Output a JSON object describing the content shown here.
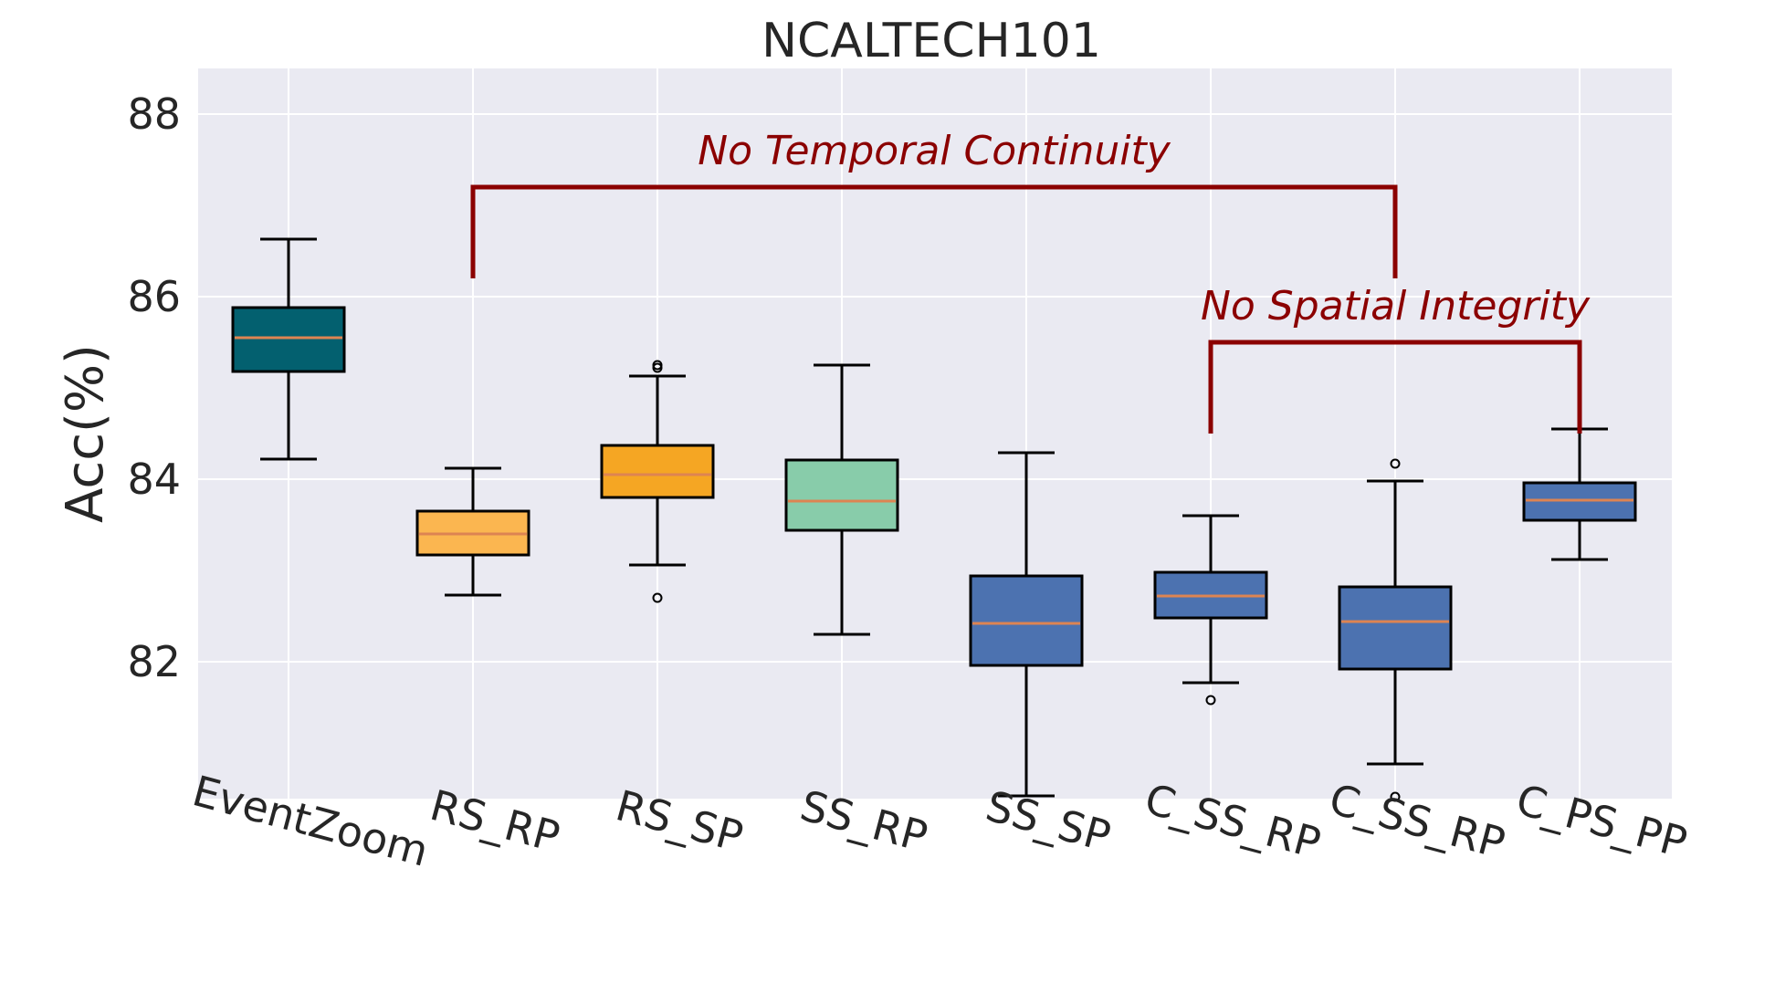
{
  "chart_data": {
    "type": "box",
    "title": "NCALTECH101",
    "xlabel": "",
    "ylabel": "Acc(%)",
    "ylim": [
      80.5,
      88.5
    ],
    "yticks": [
      82,
      84,
      86,
      88
    ],
    "grid": true,
    "categories": [
      "EventZoom",
      "RS_RP",
      "RS_SP",
      "SS_RP",
      "SS_SP",
      "C_SS_RP",
      "C_SS_RP",
      "C_PS_PP"
    ],
    "boxes": [
      {
        "whislo": 84.22,
        "q1": 85.18,
        "med": 85.55,
        "q3": 85.88,
        "whishi": 86.63,
        "fliers": [],
        "color": "#03606f"
      },
      {
        "whislo": 82.73,
        "q1": 83.17,
        "med": 83.4,
        "q3": 83.65,
        "whishi": 84.12,
        "fliers": [],
        "color": "#fbb650"
      },
      {
        "whislo": 83.06,
        "q1": 83.8,
        "med": 84.05,
        "q3": 84.37,
        "whishi": 85.13,
        "fliers": [
          82.7,
          85.22,
          85.25
        ],
        "color": "#f5a623"
      },
      {
        "whislo": 82.3,
        "q1": 83.44,
        "med": 83.76,
        "q3": 84.21,
        "whishi": 85.25,
        "fliers": [],
        "color": "#88ccaa"
      },
      {
        "whislo": 80.53,
        "q1": 81.96,
        "med": 82.42,
        "q3": 82.94,
        "whishi": 84.29,
        "fliers": [],
        "color": "#4c72b0"
      },
      {
        "whislo": 81.77,
        "q1": 82.48,
        "med": 82.72,
        "q3": 82.98,
        "whishi": 83.6,
        "fliers": [
          81.58
        ],
        "color": "#4c72b0"
      },
      {
        "whislo": 80.88,
        "q1": 81.92,
        "med": 82.44,
        "q3": 82.82,
        "whishi": 83.98,
        "fliers": [
          84.17,
          80.52
        ],
        "color": "#4c72b0"
      },
      {
        "whislo": 83.12,
        "q1": 83.55,
        "med": 83.77,
        "q3": 83.96,
        "whishi": 84.55,
        "fliers": [],
        "color": "#4c72b0"
      }
    ],
    "annotations": [
      {
        "text": "No Temporal Continuity",
        "from_category": 1,
        "to_category": 6,
        "bar_y": 87.2,
        "tick_bottom": 86.2,
        "text_y": 87.45
      },
      {
        "text": "No Spatial Integrity",
        "from_category": 5,
        "to_category": 7,
        "bar_y": 85.5,
        "tick_bottom": 84.5,
        "text_y": 85.75
      }
    ],
    "annotation_color": "#8b0000",
    "median_color": "#dd8452",
    "background_color": "#eaeaf2"
  }
}
